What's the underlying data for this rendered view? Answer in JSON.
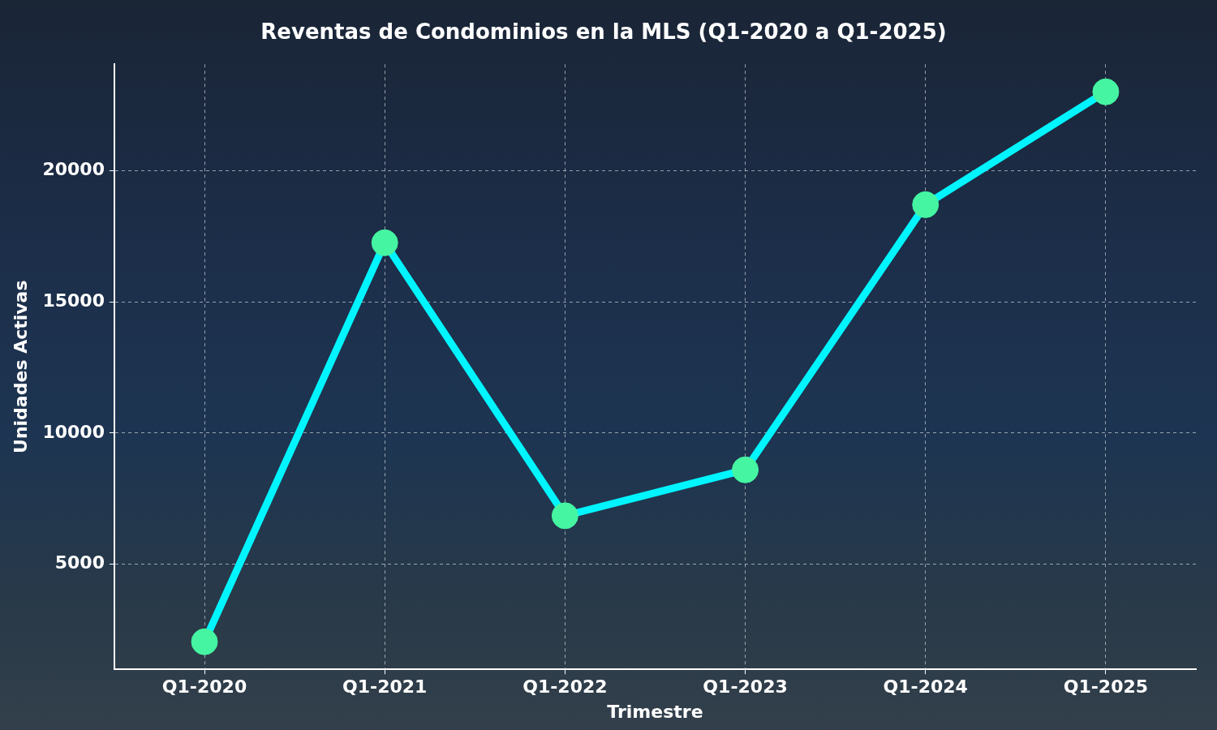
{
  "chart_data": {
    "type": "line",
    "title": "Reventas de Condominios en la MLS (Q1-2020 a Q1-2025)",
    "x_label": "Trimestre",
    "y_label": "Unidades Activas",
    "categories": [
      "Q1-2020",
      "Q1-2021",
      "Q1-2022",
      "Q1-2023",
      "Q1-2024",
      "Q1-2025"
    ],
    "values": [
      2050,
      17250,
      6850,
      8600,
      18700,
      23000
    ],
    "color": "#00f5ff",
    "marker": "circle",
    "ylim": [
      1000,
      24050
    ],
    "yticks": [
      5000,
      10000,
      15000,
      20000
    ],
    "grid": true
  }
}
